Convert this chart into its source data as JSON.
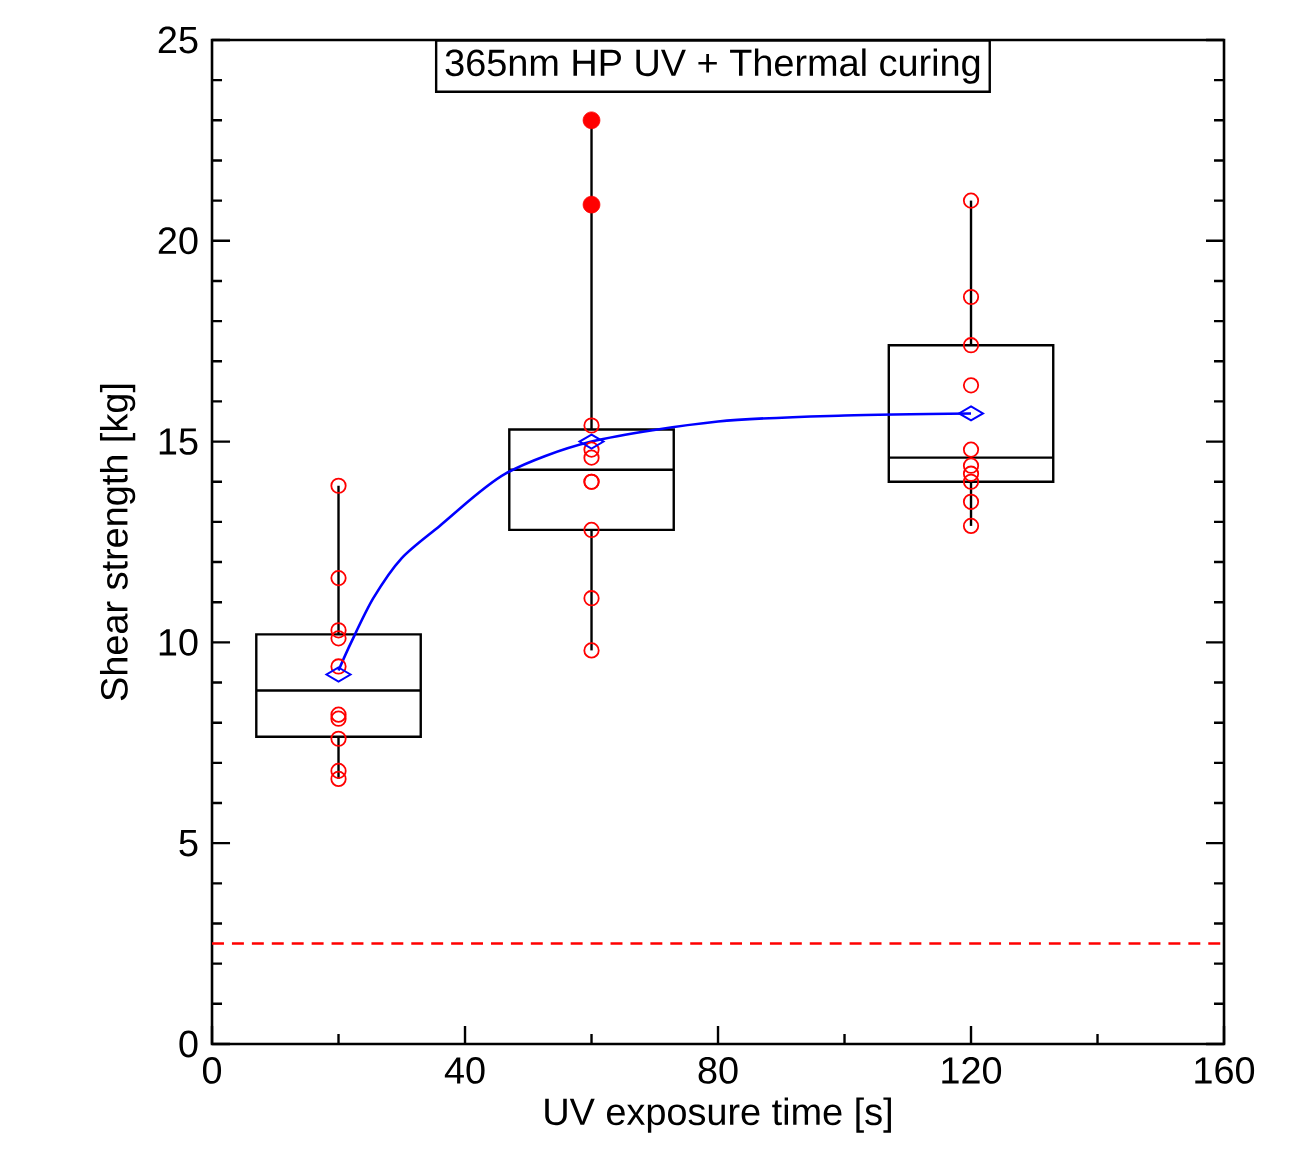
{
  "chart_data": {
    "type": "box",
    "title": "365nm HP UV + Thermal curing",
    "xlabel": "UV exposure time [s]",
    "ylabel": "Shear strength [kg]",
    "xlim": [
      0,
      160
    ],
    "ylim": [
      0,
      25
    ],
    "xticks": [
      0,
      40,
      80,
      120,
      160
    ],
    "yticks": [
      0,
      5,
      10,
      15,
      20,
      25
    ],
    "grid": false,
    "x": [
      20,
      60,
      120
    ],
    "boxes": [
      {
        "low": 6.6,
        "q1": 7.65,
        "median": 8.8,
        "q3": 10.2,
        "high": 13.9,
        "mean": 9.2
      },
      {
        "low": 9.8,
        "q1": 12.8,
        "median": 14.3,
        "q3": 15.3,
        "high": 23.0,
        "mean": 15.0,
        "outliers": [
          23.0,
          20.9
        ]
      },
      {
        "low": 12.9,
        "q1": 14.0,
        "median": 14.6,
        "q3": 17.4,
        "high": 21.0,
        "mean": 15.7
      }
    ],
    "series": [
      {
        "type": "scatter",
        "color": "#ff0000",
        "marker": "circle",
        "x": [
          20,
          20,
          20,
          20,
          20,
          20,
          20,
          20,
          20,
          20,
          60,
          60,
          60,
          60,
          60,
          60,
          60,
          60,
          120,
          120,
          120,
          120,
          120,
          120,
          120,
          120,
          120,
          120
        ],
        "values": [
          13.9,
          11.6,
          10.3,
          10.1,
          9.4,
          8.2,
          8.1,
          7.6,
          6.8,
          6.6,
          15.4,
          14.8,
          14.6,
          14.0,
          14.0,
          12.8,
          11.1,
          9.8,
          21.0,
          18.6,
          17.4,
          16.4,
          14.8,
          14.4,
          14.2,
          14.0,
          13.5,
          12.9
        ]
      },
      {
        "type": "line",
        "color": "#0000ff",
        "marker": "none",
        "line_style": "solid",
        "x": [
          20,
          22,
          25.5,
          30,
          36,
          46.4,
          60,
          80,
          100,
          120
        ],
        "values": [
          9.3,
          10.0,
          11.1,
          12.1,
          12.9,
          14.2,
          15.0,
          15.5,
          15.65,
          15.7
        ]
      }
    ],
    "ref_lines": [
      {
        "axis": "y",
        "value": 2.5,
        "color": "#ff0000",
        "line_style": "dashed"
      }
    ]
  }
}
